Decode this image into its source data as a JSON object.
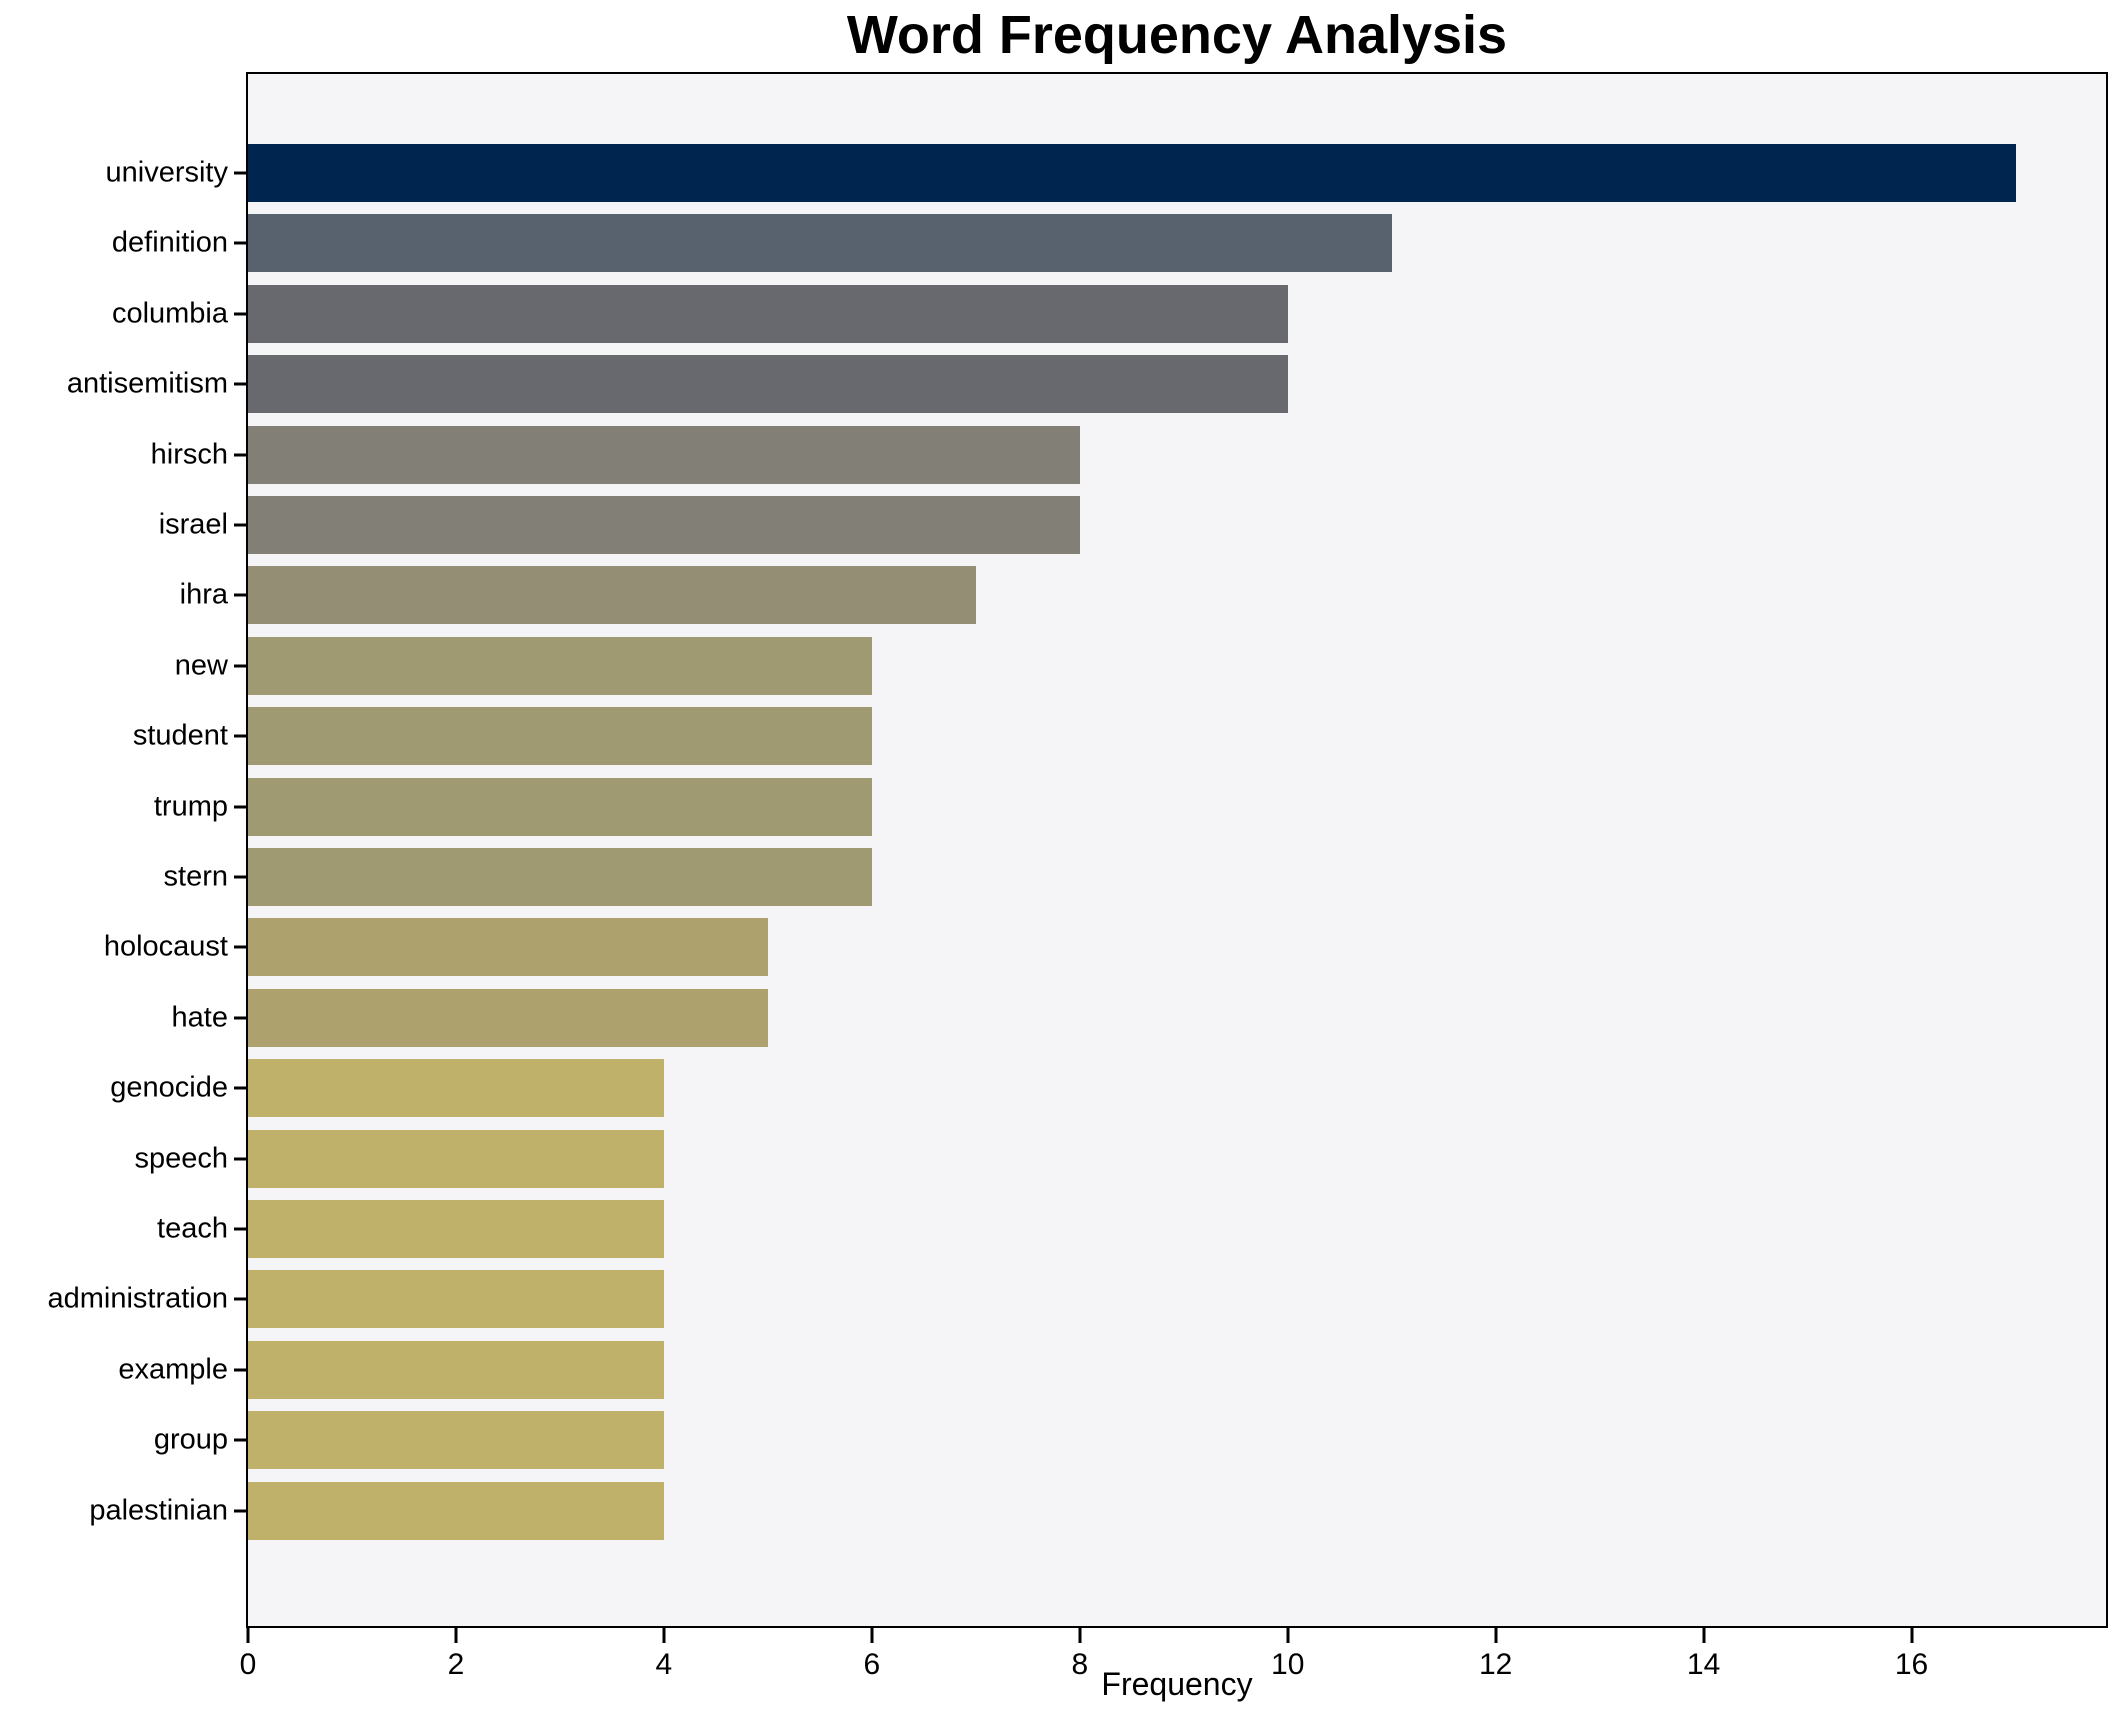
{
  "chart_data": {
    "type": "bar",
    "orientation": "horizontal",
    "title": "Word Frequency Analysis",
    "xlabel": "Frequency",
    "ylabel": "",
    "categories": [
      "university",
      "definition",
      "columbia",
      "antisemitism",
      "hirsch",
      "israel",
      "ihra",
      "new",
      "student",
      "trump",
      "stern",
      "holocaust",
      "hate",
      "genocide",
      "speech",
      "teach",
      "administration",
      "example",
      "group",
      "palestinian"
    ],
    "values": [
      17,
      11,
      10,
      10,
      8,
      8,
      7,
      6,
      6,
      6,
      6,
      5,
      5,
      4,
      4,
      4,
      4,
      4,
      4,
      4
    ],
    "bar_colors": [
      "#00254e",
      "#58626f",
      "#67696e",
      "#67696e",
      "#828076",
      "#828076",
      "#938e74",
      "#a09a73",
      "#a09a73",
      "#a09a73",
      "#a09a73",
      "#ada26e",
      "#ada26e",
      "#bfb169",
      "#bfb169",
      "#bfb169",
      "#bfb169",
      "#bfb169",
      "#bfb169",
      "#bfb169"
    ],
    "xlim": [
      0,
      17.87
    ],
    "xticks": [
      0,
      2,
      4,
      6,
      8,
      10,
      12,
      14,
      16
    ],
    "grid": false,
    "legend_position": "none",
    "plot_background": "#f5f4f6",
    "figure_background": "#ffffff",
    "colormap_hint": "cividis dark-navy (high) to khaki (low)"
  }
}
